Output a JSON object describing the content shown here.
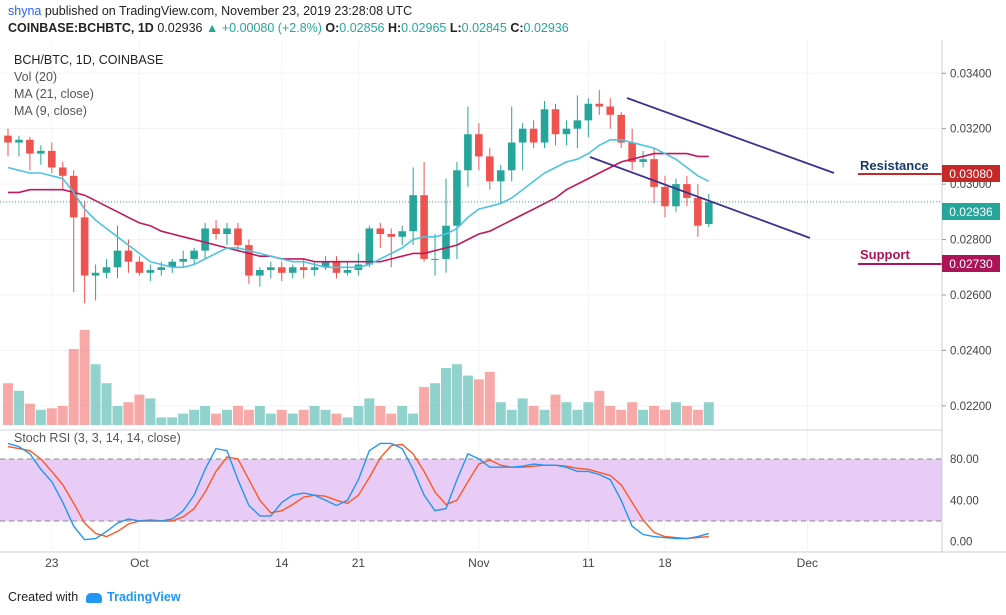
{
  "header": {
    "publisher": "shyna",
    "published_text": "published on TradingView.com, November 23, 2019 23:28:08 UTC",
    "symbol": "COINBASE:BCHBTC, 1D",
    "last": "0.02936",
    "change": "▲ +0.00080 (+2.8%)",
    "o_label": "O:",
    "o": "0.02856",
    "h_label": "H:",
    "h": "0.02965",
    "l_label": "L:",
    "l": "0.02845",
    "c_label": "C:",
    "c": "0.02936"
  },
  "legend": {
    "title": "BCH/BTC, 1D, COINBASE",
    "vol": "Vol (20)",
    "ma21": "MA (21, close)",
    "ma9": "MA (9, close)",
    "rsi": "Stoch RSI (3, 3, 14, 14, close)"
  },
  "annotations": {
    "resistance": "Resistance",
    "support": "Support",
    "resistance_value": "0.03080",
    "support_value": "0.02730",
    "last_value": "0.02936"
  },
  "footer": {
    "created_with": "Created with",
    "brand": "TradingView"
  },
  "colors": {
    "up": "#26a69a",
    "down": "#ef5350",
    "ma9": "#4fc3e0",
    "ma21": "#c2185b",
    "trendline": "#3b2f8f",
    "resistance": "#c62828",
    "support": "#ad1457",
    "rsi_k": "#2196f3",
    "rsi_d": "#ff5722",
    "rsi_band": "#e8ccf5"
  },
  "chart_data": {
    "type": "candlestick",
    "price_axis_ticks": [
      "0.03400",
      "0.03200",
      "0.03000",
      "0.02800",
      "0.02600",
      "0.02400",
      "0.02200"
    ],
    "price_ylim": [
      0.0212,
      0.0352
    ],
    "rsi_axis_ticks": [
      "80.00",
      "40.00",
      "0.00"
    ],
    "rsi_ylim": [
      -8,
      108
    ],
    "x_tick_labels": [
      {
        "label": "23",
        "index": 4
      },
      {
        "label": "Oct",
        "index": 12
      },
      {
        "label": "14",
        "index": 25
      },
      {
        "label": "21",
        "index": 32
      },
      {
        "label": "Nov",
        "index": 43
      },
      {
        "label": "11",
        "index": 53
      },
      {
        "label": "18",
        "index": 60
      },
      {
        "label": "Dec",
        "index": 73
      }
    ],
    "candles": [
      [
        0.03175,
        0.032,
        0.031,
        0.0315
      ],
      [
        0.0315,
        0.03175,
        0.031,
        0.0316
      ],
      [
        0.0316,
        0.0317,
        0.0305,
        0.0311
      ],
      [
        0.0311,
        0.0314,
        0.0307,
        0.0312
      ],
      [
        0.0312,
        0.0315,
        0.0304,
        0.0306
      ],
      [
        0.0306,
        0.0308,
        0.0298,
        0.0303
      ],
      [
        0.0303,
        0.0305,
        0.0261,
        0.0288
      ],
      [
        0.0288,
        0.0294,
        0.0257,
        0.0267
      ],
      [
        0.0267,
        0.0271,
        0.0258,
        0.0268
      ],
      [
        0.0268,
        0.0273,
        0.0266,
        0.027
      ],
      [
        0.027,
        0.0285,
        0.0266,
        0.0276
      ],
      [
        0.0276,
        0.028,
        0.0268,
        0.0272
      ],
      [
        0.0272,
        0.0274,
        0.0267,
        0.0268
      ],
      [
        0.0268,
        0.0271,
        0.0265,
        0.0269
      ],
      [
        0.0269,
        0.0272,
        0.0267,
        0.027
      ],
      [
        0.027,
        0.0273,
        0.0268,
        0.0272
      ],
      [
        0.0272,
        0.0276,
        0.027,
        0.0273
      ],
      [
        0.0273,
        0.0277,
        0.0271,
        0.0276
      ],
      [
        0.0276,
        0.0286,
        0.0273,
        0.0284
      ],
      [
        0.0284,
        0.0287,
        0.028,
        0.0282
      ],
      [
        0.0282,
        0.0286,
        0.0278,
        0.0284
      ],
      [
        0.0284,
        0.0286,
        0.0276,
        0.0278
      ],
      [
        0.0278,
        0.028,
        0.0264,
        0.0267
      ],
      [
        0.0267,
        0.027,
        0.0263,
        0.0269
      ],
      [
        0.0269,
        0.0272,
        0.0266,
        0.027
      ],
      [
        0.027,
        0.0272,
        0.0265,
        0.0268
      ],
      [
        0.0268,
        0.0271,
        0.0266,
        0.027
      ],
      [
        0.027,
        0.0273,
        0.0266,
        0.0269
      ],
      [
        0.0269,
        0.0272,
        0.0267,
        0.027
      ],
      [
        0.027,
        0.0274,
        0.0269,
        0.0272
      ],
      [
        0.0272,
        0.0274,
        0.0266,
        0.0268
      ],
      [
        0.0268,
        0.0272,
        0.0267,
        0.0269
      ],
      [
        0.0269,
        0.0275,
        0.0267,
        0.0271
      ],
      [
        0.0271,
        0.0285,
        0.027,
        0.0284
      ],
      [
        0.0284,
        0.0286,
        0.0277,
        0.0282
      ],
      [
        0.0282,
        0.0284,
        0.027,
        0.0281
      ],
      [
        0.0281,
        0.0285,
        0.0278,
        0.0283
      ],
      [
        0.0283,
        0.0306,
        0.0278,
        0.0296
      ],
      [
        0.0296,
        0.0308,
        0.0272,
        0.0273
      ],
      [
        0.0273,
        0.0282,
        0.0267,
        0.0273
      ],
      [
        0.0273,
        0.0302,
        0.0268,
        0.0285
      ],
      [
        0.0285,
        0.0308,
        0.0273,
        0.0305
      ],
      [
        0.0305,
        0.0328,
        0.0299,
        0.0318
      ],
      [
        0.0318,
        0.0322,
        0.0305,
        0.031
      ],
      [
        0.031,
        0.0313,
        0.0298,
        0.0301
      ],
      [
        0.0301,
        0.0307,
        0.0293,
        0.0305
      ],
      [
        0.0305,
        0.0328,
        0.0301,
        0.0315
      ],
      [
        0.0315,
        0.0322,
        0.0305,
        0.032
      ],
      [
        0.032,
        0.0323,
        0.0313,
        0.0315
      ],
      [
        0.0315,
        0.033,
        0.0313,
        0.0327
      ],
      [
        0.0327,
        0.0329,
        0.0314,
        0.0318
      ],
      [
        0.0318,
        0.0323,
        0.0314,
        0.032
      ],
      [
        0.032,
        0.0332,
        0.0313,
        0.0323
      ],
      [
        0.0323,
        0.0331,
        0.0317,
        0.0329
      ],
      [
        0.0329,
        0.0334,
        0.0325,
        0.0328
      ],
      [
        0.0328,
        0.0331,
        0.032,
        0.0325
      ],
      [
        0.0325,
        0.0326,
        0.0313,
        0.0315
      ],
      [
        0.0315,
        0.032,
        0.0305,
        0.0308
      ],
      [
        0.0308,
        0.0312,
        0.0306,
        0.0309
      ],
      [
        0.0309,
        0.0313,
        0.0293,
        0.0299
      ],
      [
        0.0299,
        0.0303,
        0.0288,
        0.0292
      ],
      [
        0.0292,
        0.0302,
        0.029,
        0.03
      ],
      [
        0.03,
        0.0303,
        0.0292,
        0.0295
      ],
      [
        0.0295,
        0.03,
        0.0281,
        0.0285
      ],
      [
        0.02856,
        0.02965,
        0.02845,
        0.02936
      ]
    ],
    "ma9": [
      0.0306,
      0.0305,
      0.0304,
      0.0304,
      0.0303,
      0.0302,
      0.0297,
      0.0291,
      0.0287,
      0.0284,
      0.0281,
      0.0278,
      0.0275,
      0.0272,
      0.0271,
      0.027,
      0.027,
      0.0271,
      0.0273,
      0.0275,
      0.0277,
      0.0277,
      0.0276,
      0.0275,
      0.0274,
      0.0273,
      0.0272,
      0.0272,
      0.0271,
      0.027,
      0.027,
      0.027,
      0.027,
      0.0271,
      0.0273,
      0.0275,
      0.0277,
      0.028,
      0.0281,
      0.0281,
      0.0282,
      0.0284,
      0.0288,
      0.0291,
      0.0292,
      0.0293,
      0.0295,
      0.0298,
      0.0301,
      0.0304,
      0.0306,
      0.0308,
      0.0309,
      0.0311,
      0.0314,
      0.0316,
      0.0316,
      0.0315,
      0.0314,
      0.0313,
      0.0311,
      0.0309,
      0.0306,
      0.0303,
      0.0301
    ],
    "ma21": [
      0.0297,
      0.0297,
      0.0298,
      0.0298,
      0.0298,
      0.0298,
      0.0297,
      0.0296,
      0.0294,
      0.0292,
      0.029,
      0.0288,
      0.0286,
      0.0285,
      0.0283,
      0.0282,
      0.0281,
      0.028,
      0.0279,
      0.0278,
      0.0277,
      0.0276,
      0.0275,
      0.0274,
      0.0274,
      0.0273,
      0.0273,
      0.0273,
      0.0272,
      0.0272,
      0.0272,
      0.0272,
      0.0272,
      0.0272,
      0.0272,
      0.0273,
      0.0274,
      0.0275,
      0.0275,
      0.0276,
      0.0277,
      0.0278,
      0.028,
      0.0282,
      0.0283,
      0.0285,
      0.0287,
      0.0289,
      0.0291,
      0.0293,
      0.0295,
      0.0298,
      0.03,
      0.0302,
      0.0304,
      0.0306,
      0.0308,
      0.0309,
      0.031,
      0.0311,
      0.0311,
      0.0311,
      0.0311,
      0.031,
      0.031
    ],
    "volume": [
      0.55,
      0.45,
      0.28,
      0.2,
      0.22,
      0.25,
      1.0,
      1.25,
      0.8,
      0.55,
      0.25,
      0.3,
      0.4,
      0.35,
      0.1,
      0.1,
      0.15,
      0.2,
      0.25,
      0.15,
      0.2,
      0.25,
      0.2,
      0.25,
      0.15,
      0.2,
      0.15,
      0.2,
      0.25,
      0.2,
      0.15,
      0.1,
      0.25,
      0.35,
      0.25,
      0.15,
      0.25,
      0.15,
      0.5,
      0.55,
      0.75,
      0.8,
      0.65,
      0.6,
      0.7,
      0.3,
      0.2,
      0.35,
      0.25,
      0.2,
      0.4,
      0.3,
      0.2,
      0.3,
      0.45,
      0.25,
      0.2,
      0.3,
      0.2,
      0.25,
      0.2,
      0.3,
      0.25,
      0.2,
      0.3
    ],
    "stoch_k": [
      95,
      92,
      85,
      70,
      58,
      38,
      15,
      2,
      3,
      10,
      18,
      22,
      20,
      20,
      20,
      22,
      30,
      45,
      70,
      90,
      88,
      60,
      35,
      25,
      25,
      38,
      45,
      47,
      45,
      40,
      35,
      40,
      60,
      88,
      95,
      95,
      90,
      70,
      45,
      30,
      32,
      60,
      85,
      80,
      72,
      72,
      72,
      73,
      75,
      74,
      74,
      72,
      68,
      68,
      65,
      60,
      40,
      15,
      7,
      5,
      4,
      3,
      3,
      5,
      8
    ],
    "stoch_d": [
      92,
      90,
      88,
      80,
      68,
      55,
      37,
      18,
      8,
      5,
      10,
      17,
      20,
      21,
      20,
      20,
      24,
      32,
      48,
      68,
      82,
      80,
      60,
      40,
      28,
      30,
      36,
      43,
      45,
      44,
      40,
      37,
      45,
      62,
      81,
      93,
      94,
      85,
      68,
      48,
      36,
      40,
      58,
      75,
      79,
      74,
      72,
      72,
      73,
      74,
      74,
      73,
      71,
      70,
      67,
      64,
      55,
      38,
      21,
      9,
      5,
      4,
      3,
      4,
      5
    ]
  }
}
